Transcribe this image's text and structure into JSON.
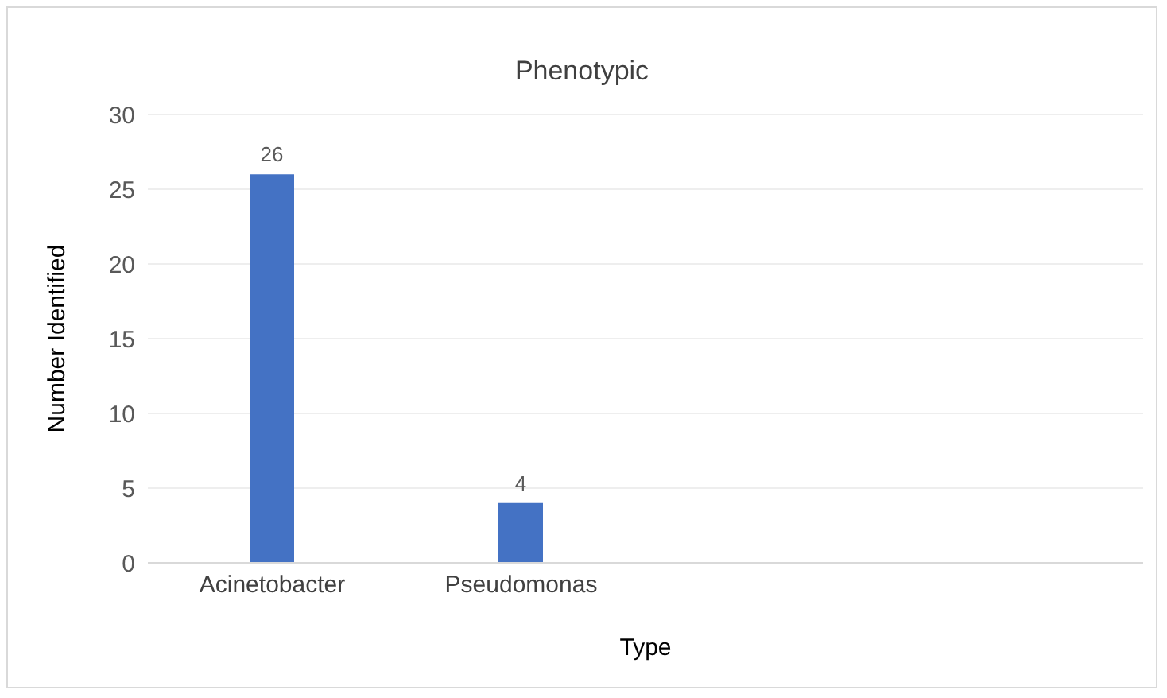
{
  "chart_data": {
    "type": "bar",
    "title": "Phenotypic",
    "xlabel": "Type",
    "ylabel": "Number Identified",
    "categories": [
      "Acinetobacter",
      "Pseudomonas",
      null,
      null
    ],
    "values": [
      26,
      4,
      null,
      null
    ],
    "color": "#4472c4",
    "ylim": [
      0,
      30
    ],
    "yticks": [
      0,
      5,
      10,
      15,
      20,
      25,
      30
    ],
    "grid": "y",
    "data_labels": true
  }
}
